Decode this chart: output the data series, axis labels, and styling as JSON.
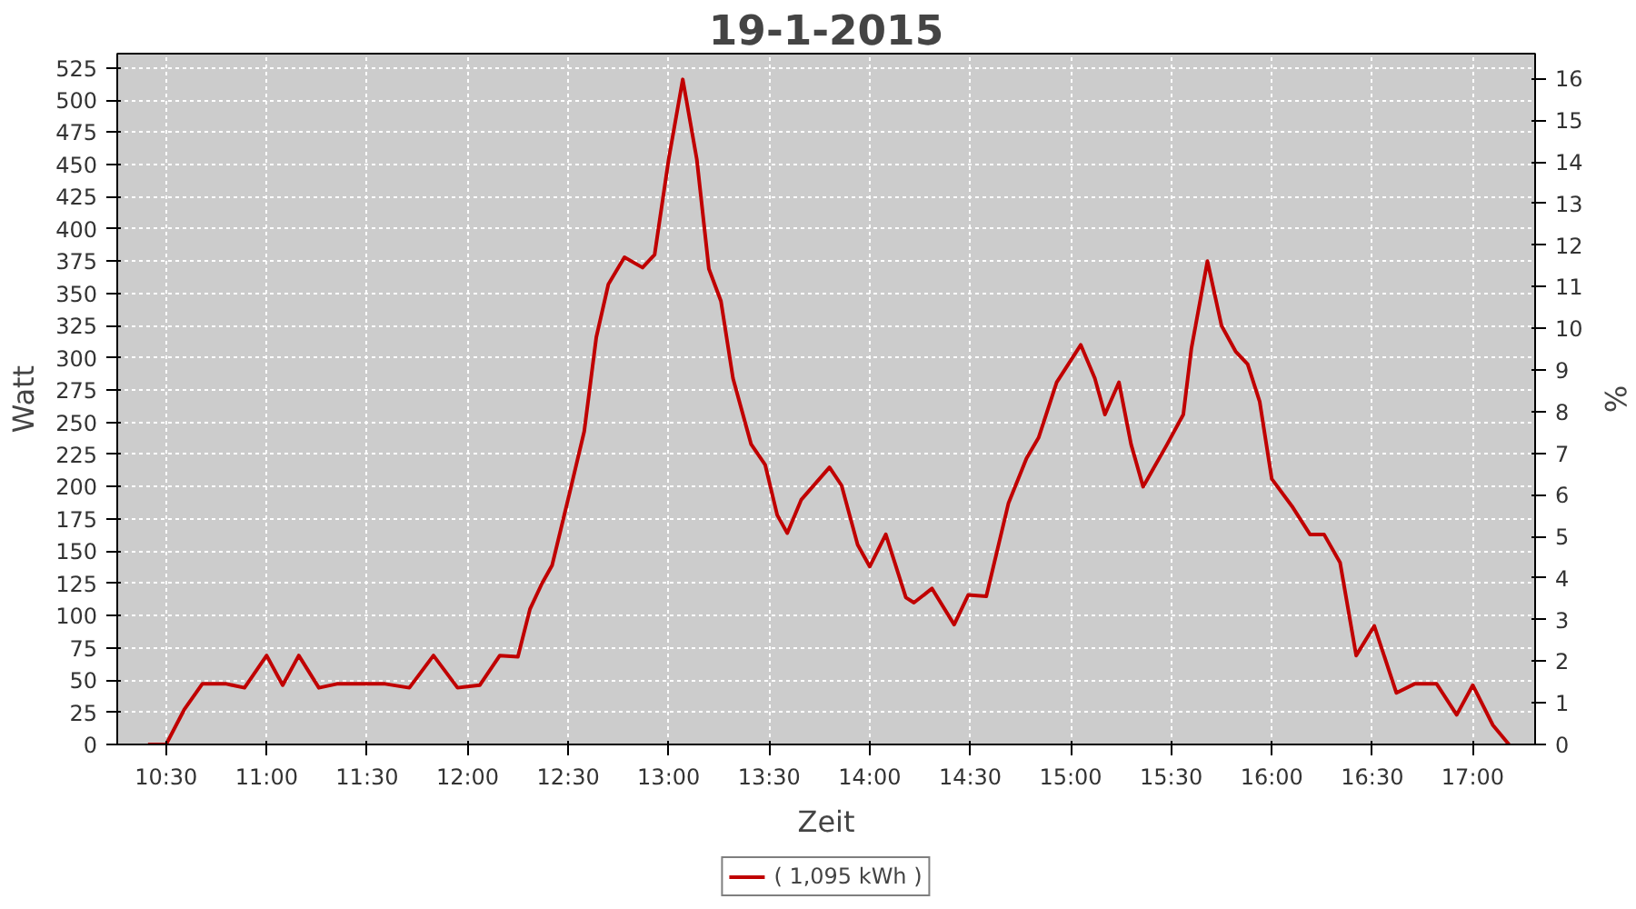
{
  "chart_data": {
    "type": "line",
    "title": "19-1-2015",
    "xlabel": "Zeit",
    "ylabel": "Watt",
    "y2label": "%",
    "xlim": [
      10.257,
      17.31
    ],
    "ylim": [
      0,
      536
    ],
    "y2lim": [
      0,
      16.6
    ],
    "xticks": [
      {
        "value": 10.5,
        "label": "10:30"
      },
      {
        "value": 11,
        "label": "11:00"
      },
      {
        "value": 11.5,
        "label": "11:30"
      },
      {
        "value": 12,
        "label": "12:00"
      },
      {
        "value": 12.5,
        "label": "12:30"
      },
      {
        "value": 13,
        "label": "13:00"
      },
      {
        "value": 13.5,
        "label": "13:30"
      },
      {
        "value": 14,
        "label": "14:00"
      },
      {
        "value": 14.5,
        "label": "14:30"
      },
      {
        "value": 15,
        "label": "15:00"
      },
      {
        "value": 15.5,
        "label": "15:30"
      },
      {
        "value": 16,
        "label": "16:00"
      },
      {
        "value": 16.5,
        "label": "16:30"
      },
      {
        "value": 17,
        "label": "17:00"
      }
    ],
    "yticks": [
      0,
      25,
      50,
      75,
      100,
      125,
      150,
      175,
      200,
      225,
      250,
      275,
      300,
      325,
      350,
      375,
      400,
      425,
      450,
      475,
      500,
      525
    ],
    "y2ticks": [
      0,
      1,
      2,
      3,
      4,
      5,
      6,
      7,
      8,
      9,
      10,
      11,
      12,
      13,
      14,
      15,
      16
    ],
    "grid": true,
    "legend": "bottom",
    "line_style": "solid",
    "marker": "none",
    "series": [
      {
        "name": "( 1,095 kWh )",
        "color": "#c00000",
        "x": [
          10.41,
          10.5,
          10.59,
          10.68,
          10.8,
          10.89,
          11.0,
          11.08,
          11.16,
          11.26,
          11.35,
          11.59,
          11.71,
          11.83,
          11.95,
          12.06,
          12.16,
          12.25,
          12.31,
          12.37,
          12.42,
          12.51,
          12.58,
          12.64,
          12.7,
          12.78,
          12.87,
          12.93,
          13.0,
          13.07,
          13.14,
          13.2,
          13.26,
          13.32,
          13.41,
          13.48,
          13.54,
          13.59,
          13.66,
          13.8,
          13.86,
          13.94,
          14.0,
          14.08,
          14.18,
          14.22,
          14.31,
          14.42,
          14.49,
          14.58,
          14.69,
          14.78,
          14.84,
          14.93,
          15.05,
          15.12,
          15.17,
          15.24,
          15.3,
          15.36,
          15.48,
          15.56,
          15.6,
          15.68,
          15.75,
          15.82,
          15.88,
          15.94,
          16.0,
          16.1,
          16.19,
          16.26,
          16.34,
          16.42,
          16.51,
          16.62,
          16.71,
          16.82,
          16.92,
          17.0,
          17.1,
          17.18
        ],
        "values": [
          0,
          0,
          27,
          47,
          47,
          44,
          69,
          46,
          69,
          44,
          47,
          47,
          44,
          69,
          44,
          46,
          69,
          68,
          105,
          125,
          139,
          197,
          243,
          316,
          357,
          378,
          370,
          380,
          454,
          516,
          454,
          369,
          344,
          284,
          233,
          217,
          178,
          164,
          190,
          215,
          201,
          155,
          138,
          163,
          114,
          110,
          121,
          93,
          116,
          115,
          187,
          222,
          238,
          281,
          310,
          284,
          256,
          281,
          233,
          200,
          233,
          256,
          307,
          375,
          325,
          305,
          295,
          266,
          206,
          185,
          163,
          163,
          141,
          69,
          92,
          40,
          47,
          47,
          23,
          46,
          15,
          0
        ]
      }
    ]
  }
}
